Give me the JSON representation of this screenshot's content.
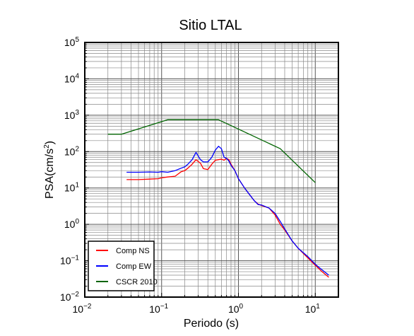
{
  "chart_data": {
    "type": "line",
    "title": "Sitio LTAL",
    "xlabel": "Periodo (s)",
    "ylabel": "PSA(cm/s",
    "ylabel_sup": "2",
    "ylabel_close": ")",
    "xscale": "log",
    "yscale": "log",
    "xlim": [
      0.01,
      20
    ],
    "ylim": [
      0.01,
      100000
    ],
    "grid": true,
    "legend_position": "bottom-left",
    "x_ticks": [
      {
        "value": 0.01,
        "base": "10",
        "exp": "−2"
      },
      {
        "value": 0.1,
        "base": "10",
        "exp": "−1"
      },
      {
        "value": 1,
        "base": "10",
        "exp": "0"
      },
      {
        "value": 10,
        "base": "10",
        "exp": "1"
      }
    ],
    "y_ticks": [
      {
        "value": 0.01,
        "base": "10",
        "exp": "−2"
      },
      {
        "value": 0.1,
        "base": "10",
        "exp": "−1"
      },
      {
        "value": 1,
        "base": "10",
        "exp": "0"
      },
      {
        "value": 10,
        "base": "10",
        "exp": "1"
      },
      {
        "value": 100,
        "base": "10",
        "exp": "2"
      },
      {
        "value": 1000,
        "base": "10",
        "exp": "3"
      },
      {
        "value": 10000,
        "base": "10",
        "exp": "4"
      },
      {
        "value": 100000,
        "base": "10",
        "exp": "5"
      }
    ],
    "series": [
      {
        "name": "Comp NS",
        "color": "#ff0000",
        "x": [
          0.035,
          0.05,
          0.07,
          0.09,
          0.1,
          0.12,
          0.15,
          0.18,
          0.2,
          0.22,
          0.25,
          0.28,
          0.32,
          0.35,
          0.4,
          0.45,
          0.5,
          0.55,
          0.6,
          0.65,
          0.7,
          0.75,
          0.8,
          0.9,
          1.0,
          1.2,
          1.4,
          1.6,
          1.8,
          2.0,
          2.5,
          3.0,
          3.5,
          4.0,
          5.0,
          6.0,
          8.0,
          10.0,
          12.0,
          15.0
        ],
        "y": [
          17,
          17,
          17.5,
          18,
          19,
          20,
          21,
          28,
          30,
          35,
          45,
          60,
          48,
          34,
          32,
          45,
          58,
          60,
          62,
          58,
          65,
          60,
          45,
          30,
          18,
          10,
          6.5,
          4.5,
          3.6,
          3.3,
          2.8,
          1.8,
          1.0,
          0.7,
          0.35,
          0.22,
          0.12,
          0.075,
          0.052,
          0.035
        ]
      },
      {
        "name": "Comp EW",
        "color": "#0000ff",
        "x": [
          0.035,
          0.05,
          0.07,
          0.09,
          0.1,
          0.12,
          0.15,
          0.18,
          0.2,
          0.22,
          0.25,
          0.28,
          0.32,
          0.35,
          0.4,
          0.45,
          0.5,
          0.55,
          0.6,
          0.65,
          0.7,
          0.75,
          0.8,
          0.9,
          1.0,
          1.2,
          1.4,
          1.6,
          1.8,
          2.0,
          2.5,
          3.0,
          3.5,
          4.0,
          5.0,
          6.0,
          8.0,
          10.0,
          12.0,
          15.0
        ],
        "y": [
          27,
          27,
          27.5,
          27,
          28,
          27,
          30,
          35,
          38,
          45,
          60,
          95,
          60,
          52,
          52,
          70,
          110,
          140,
          120,
          70,
          65,
          55,
          42,
          30,
          18,
          10,
          6.5,
          4.5,
          3.5,
          3.4,
          2.8,
          2.0,
          1.2,
          0.75,
          0.35,
          0.22,
          0.13,
          0.08,
          0.058,
          0.04
        ]
      },
      {
        "name": "CSCR 2010",
        "color": "#006400",
        "x": [
          0.02,
          0.03,
          0.12,
          0.2,
          0.3,
          0.55,
          3.5,
          10.0
        ],
        "y": [
          300,
          300,
          750,
          750,
          750,
          750,
          120,
          14
        ]
      }
    ]
  }
}
